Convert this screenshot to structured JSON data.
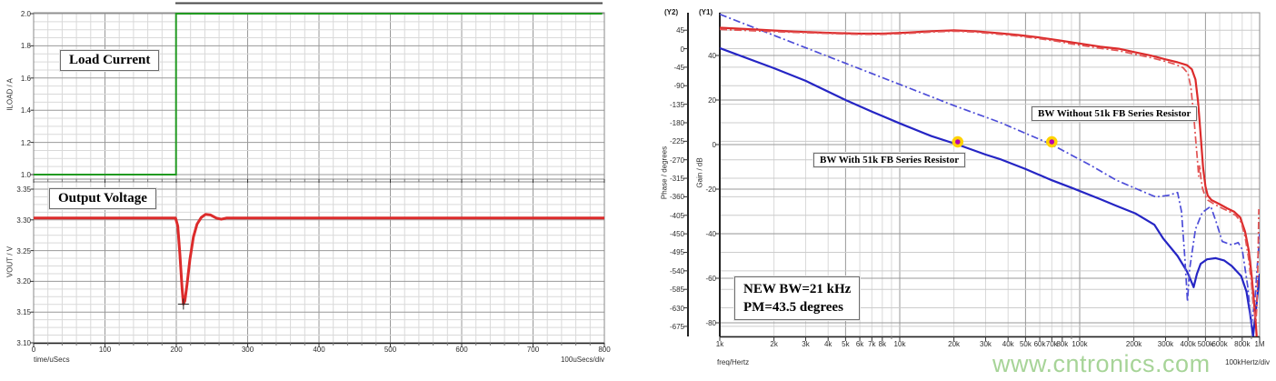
{
  "watermark": "www.cntronics.com",
  "colors": {
    "green": "#219a21",
    "red": "#dc2b2b",
    "red_light": "#e25454",
    "blue": "#2525c4",
    "blue_light": "#4d4dd8",
    "marker_fill": "#b400b4",
    "marker_ring": "#ffd200",
    "grid_minor": "#d9d9d9",
    "grid_major": "#999999",
    "frame": "#888888",
    "axis": "#222222"
  },
  "chart_data": [
    {
      "type": "line",
      "title": "Load Current",
      "ylabel": "ILOAD / A",
      "xlabel": "time/uSecs",
      "x_div_label": "100uSecs/div",
      "xlim": [
        0,
        800
      ],
      "ylim": [
        1.0,
        2.0
      ],
      "grid": true,
      "xticks": [
        [
          0,
          "0"
        ],
        [
          100,
          "100"
        ],
        [
          200,
          "200"
        ],
        [
          300,
          "300"
        ],
        [
          400,
          "400"
        ],
        [
          500,
          "500"
        ],
        [
          600,
          "600"
        ],
        [
          700,
          "700"
        ],
        [
          800,
          "800"
        ]
      ],
      "yticks": [
        [
          2.0,
          "2.0"
        ],
        [
          1.8,
          "1.8"
        ],
        [
          1.6,
          "1.6"
        ],
        [
          1.4,
          "1.4"
        ],
        [
          1.2,
          "1.2"
        ],
        [
          1.0,
          "1.0"
        ]
      ],
      "series": [
        {
          "name": "load_current",
          "color_key": "green",
          "points": [
            [
              0,
              1.0
            ],
            [
              199.6,
              1.0
            ],
            [
              199.6,
              2.0
            ],
            [
              797,
              2.0
            ]
          ]
        }
      ]
    },
    {
      "type": "line",
      "title": "Output Voltage",
      "ylabel": "VOUT / V",
      "ylim": [
        3.1,
        3.35
      ],
      "grid": true,
      "yticks": [
        [
          3.35,
          "3.35"
        ],
        [
          3.3,
          "3.30"
        ],
        [
          3.25,
          "3.25"
        ],
        [
          3.2,
          "3.20"
        ],
        [
          3.15,
          "3.15"
        ],
        [
          3.1,
          "3.10"
        ]
      ],
      "cursor": [
        210,
        3.163
      ],
      "series": [
        {
          "name": "output_voltage",
          "color_key": "red",
          "points": [
            [
              0,
              3.303
            ],
            [
              199,
              3.303
            ],
            [
              202,
              3.29
            ],
            [
              205,
              3.245
            ],
            [
              208,
              3.19
            ],
            [
              210,
              3.163
            ],
            [
              212,
              3.168
            ],
            [
              215,
              3.195
            ],
            [
              219,
              3.235
            ],
            [
              224,
              3.272
            ],
            [
              229,
              3.293
            ],
            [
              235,
              3.304
            ],
            [
              241,
              3.309
            ],
            [
              248,
              3.308
            ],
            [
              256,
              3.303
            ],
            [
              263,
              3.301
            ],
            [
              270,
              3.303
            ],
            [
              800,
              3.303
            ]
          ]
        }
      ]
    },
    {
      "type": "line",
      "xscale": "log",
      "xlabel": "freq/Hertz",
      "x_div_label": "100kHertz/div",
      "y2_tag": "(Y2)",
      "y1_tag": "(Y1)",
      "phase_ylabel": "Phase / degrees",
      "gain_ylabel": "Gain / dB",
      "xlim": [
        1000,
        1000000
      ],
      "phase_ylim": [
        -675,
        45
      ],
      "gain_ylim": [
        -80,
        40
      ],
      "grid": true,
      "xticks": [
        [
          1000,
          "1k"
        ],
        [
          2000,
          "2k"
        ],
        [
          3000,
          "3k"
        ],
        [
          4000,
          "4k"
        ],
        [
          5000,
          "5k"
        ],
        [
          6000,
          "6k"
        ],
        [
          7000,
          "7k"
        ],
        [
          8000,
          "8k"
        ],
        [
          10000,
          "10k"
        ],
        [
          20000,
          "20k"
        ],
        [
          30000,
          "30k"
        ],
        [
          40000,
          "40k"
        ],
        [
          50000,
          "50k"
        ],
        [
          60000,
          "60k"
        ],
        [
          70000,
          "70k"
        ],
        [
          80000,
          "80k"
        ],
        [
          100000,
          "100k"
        ],
        [
          200000,
          "200k"
        ],
        [
          300000,
          "300k"
        ],
        [
          400000,
          "400k"
        ],
        [
          500000,
          "500k"
        ],
        [
          600000,
          "600k"
        ],
        [
          800000,
          "800k"
        ],
        [
          1000000,
          "1M"
        ]
      ],
      "phase_ticks": [
        [
          45,
          "45"
        ],
        [
          0,
          "0"
        ],
        [
          -45,
          "-45"
        ],
        [
          -90,
          "-90"
        ],
        [
          -135,
          "-135"
        ],
        [
          -180,
          "-180"
        ],
        [
          -225,
          "-225"
        ],
        [
          -270,
          "-270"
        ],
        [
          -315,
          "-315"
        ],
        [
          -360,
          "-360"
        ],
        [
          -405,
          "-405"
        ],
        [
          -450,
          "-450"
        ],
        [
          -495,
          "-495"
        ],
        [
          -540,
          "-540"
        ],
        [
          -585,
          "-585"
        ],
        [
          -630,
          "-630"
        ],
        [
          -675,
          "-675"
        ]
      ],
      "gain_ticks": [
        [
          40,
          "40"
        ],
        [
          20,
          "20"
        ],
        [
          0,
          "0"
        ],
        [
          -20,
          "-20"
        ],
        [
          -40,
          "-40"
        ],
        [
          -60,
          "-60"
        ],
        [
          -80,
          "-80"
        ]
      ],
      "series": [
        {
          "name": "gain_with_51k",
          "axis": "gain",
          "style": "solid",
          "color_key": "blue",
          "points": [
            [
              1000,
              43.3
            ],
            [
              2000,
              34.3
            ],
            [
              3000,
              28.6
            ],
            [
              5000,
              20
            ],
            [
              7000,
              14.8
            ],
            [
              10000,
              9.5
            ],
            [
              15000,
              3.8
            ],
            [
              21000,
              0
            ],
            [
              30000,
              -4.5
            ],
            [
              36000,
              -6.5
            ],
            [
              50000,
              -11
            ],
            [
              70000,
              -16
            ],
            [
              91000,
              -19.5
            ],
            [
              130000,
              -24.5
            ],
            [
              160000,
              -27.5
            ],
            [
              205000,
              -31
            ],
            [
              260000,
              -36
            ],
            [
              290000,
              -42
            ],
            [
              350000,
              -50
            ],
            [
              395000,
              -57
            ],
            [
              420000,
              -62
            ],
            [
              430000,
              -64
            ],
            [
              448000,
              -58
            ],
            [
              470000,
              -53.5
            ],
            [
              510000,
              -51.5
            ],
            [
              570000,
              -51
            ],
            [
              635000,
              -52
            ],
            [
              700000,
              -54.5
            ],
            [
              790000,
              -59
            ],
            [
              845000,
              -66
            ],
            [
              885000,
              -76
            ],
            [
              920000,
              -86
            ],
            [
              960000,
              -72
            ],
            [
              1000000,
              -58
            ]
          ]
        },
        {
          "name": "gain_without_51k",
          "axis": "gain",
          "style": "dashdot",
          "color_key": "blue_light",
          "points": [
            [
              1000,
              58.5
            ],
            [
              2000,
              49
            ],
            [
              5000,
              36.5
            ],
            [
              10000,
              27
            ],
            [
              20000,
              17.5
            ],
            [
              36000,
              10
            ],
            [
              70000,
              0
            ],
            [
              115000,
              -9.3
            ],
            [
              160000,
              -16
            ],
            [
              232000,
              -21.6
            ],
            [
              265000,
              -23.5
            ],
            [
              310000,
              -22.8
            ],
            [
              350000,
              -21.5
            ],
            [
              368000,
              -30
            ],
            [
              385000,
              -52
            ],
            [
              397000,
              -70.5
            ],
            [
              408000,
              -56
            ],
            [
              440000,
              -38
            ],
            [
              480000,
              -30.5
            ],
            [
              535000,
              -27.7
            ],
            [
              575000,
              -35
            ],
            [
              620000,
              -43.5
            ],
            [
              700000,
              -45
            ],
            [
              760000,
              -44
            ],
            [
              800000,
              -47
            ],
            [
              860000,
              -64
            ],
            [
              900000,
              -81
            ],
            [
              940000,
              -70
            ],
            [
              1000000,
              -40
            ]
          ]
        },
        {
          "name": "phase_with_51k",
          "axis": "phase",
          "style": "solid",
          "color_key": "red",
          "points": [
            [
              1000,
              51
            ],
            [
              1600,
              46.5
            ],
            [
              2500,
              42
            ],
            [
              4000,
              38.5
            ],
            [
              6000,
              36.6
            ],
            [
              8000,
              36.5
            ],
            [
              11000,
              39
            ],
            [
              15000,
              42.5
            ],
            [
              20000,
              44.5
            ],
            [
              26000,
              42.5
            ],
            [
              35000,
              38
            ],
            [
              45000,
              33.5
            ],
            [
              60000,
              27
            ],
            [
              75000,
              21
            ],
            [
              95000,
              14
            ],
            [
              130000,
              5
            ],
            [
              165000,
              0
            ],
            [
              200000,
              -8
            ],
            [
              250000,
              -17
            ],
            [
              300000,
              -26
            ],
            [
              350000,
              -33
            ],
            [
              395000,
              -40
            ],
            [
              420000,
              -50
            ],
            [
              440000,
              -75
            ],
            [
              455000,
              -130
            ],
            [
              470000,
              -210
            ],
            [
              485000,
              -290
            ],
            [
              500000,
              -335
            ],
            [
              515000,
              -357
            ],
            [
              540000,
              -368
            ],
            [
              600000,
              -378
            ],
            [
              660000,
              -388
            ],
            [
              720000,
              -396
            ],
            [
              780000,
              -410
            ],
            [
              830000,
              -445
            ],
            [
              870000,
              -490
            ],
            [
              900000,
              -545
            ],
            [
              930000,
              -615
            ],
            [
              955000,
              -675
            ],
            [
              970000,
              -720
            ]
          ]
        },
        {
          "name": "phase_without_51k",
          "axis": "phase",
          "style": "dashdot",
          "color_key": "red_light",
          "points": [
            [
              1000,
              47
            ],
            [
              2000,
              41.5
            ],
            [
              4000,
              37
            ],
            [
              6000,
              34.8
            ],
            [
              8000,
              34.8
            ],
            [
              11000,
              37
            ],
            [
              15000,
              40.5
            ],
            [
              20000,
              42.5
            ],
            [
              26000,
              40.5
            ],
            [
              35000,
              35.5
            ],
            [
              45000,
              31
            ],
            [
              60000,
              24
            ],
            [
              75000,
              18
            ],
            [
              95000,
              10
            ],
            [
              130000,
              1
            ],
            [
              165000,
              -5
            ],
            [
              200000,
              -13
            ],
            [
              250000,
              -22
            ],
            [
              300000,
              -31
            ],
            [
              340000,
              -38
            ],
            [
              375000,
              -46
            ],
            [
              400000,
              -60
            ],
            [
              415000,
              -95
            ],
            [
              430000,
              -160
            ],
            [
              442000,
              -225
            ],
            [
              452000,
              -275
            ],
            [
              458000,
              -310
            ],
            [
              464000,
              -283
            ],
            [
              472000,
              -315
            ],
            [
              482000,
              -340
            ],
            [
              495000,
              -355
            ],
            [
              515000,
              -368
            ],
            [
              560000,
              -378
            ],
            [
              620000,
              -388
            ],
            [
              680000,
              -396
            ],
            [
              740000,
              -406
            ],
            [
              790000,
              -422
            ],
            [
              830000,
              -458
            ],
            [
              865000,
              -505
            ],
            [
              895000,
              -560
            ],
            [
              920000,
              -615
            ],
            [
              940000,
              -650
            ],
            [
              955000,
              -662
            ],
            [
              965000,
              -630
            ],
            [
              978000,
              -520
            ],
            [
              990000,
              -390
            ]
          ]
        }
      ],
      "markers": [
        {
          "freq_hz": 21000,
          "gain_db": 0,
          "label": "BW With 51k FB Series Resistor"
        },
        {
          "freq_hz": 70000,
          "gain_db": 0,
          "label": "BW Without 51k FB Series Resistor"
        }
      ],
      "annotation": {
        "line1": "NEW BW=21 kHz",
        "line2": "PM=43.5 degrees"
      }
    }
  ]
}
